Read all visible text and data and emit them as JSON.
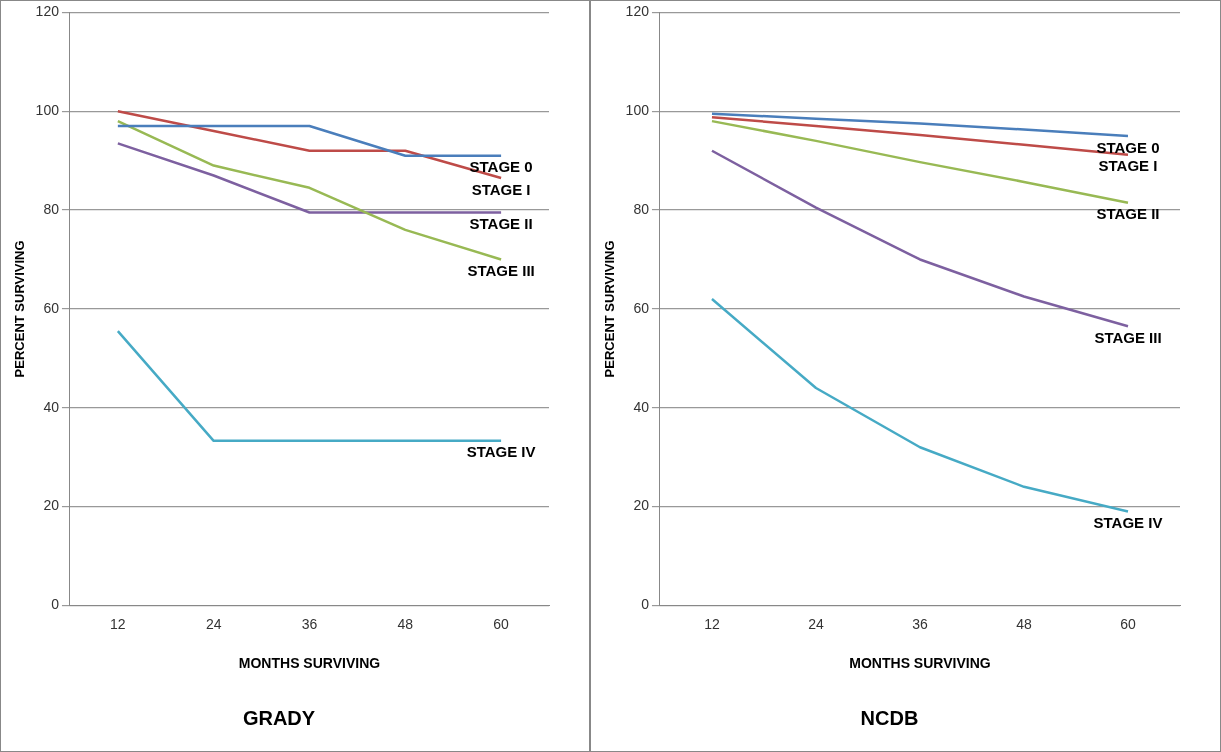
{
  "chart_data": [
    {
      "type": "line",
      "title": "GRADY",
      "xlabel": "MONTHS SURVIVING",
      "ylabel": "PERCENT SURVIVING",
      "x": [
        12,
        24,
        36,
        48,
        60
      ],
      "xlim": [
        6,
        66
      ],
      "xticks": [
        12,
        24,
        36,
        48,
        60
      ],
      "ylim": [
        0,
        120
      ],
      "yticks": [
        0,
        20,
        40,
        60,
        80,
        100,
        120
      ],
      "grid": "y",
      "series": [
        {
          "name": "STAGE 0",
          "color": "#4a7ebb",
          "values": [
            97,
            97,
            97,
            91,
            91
          ]
        },
        {
          "name": "STAGE I",
          "color": "#be4b48",
          "values": [
            100,
            96,
            92,
            92,
            86.5
          ]
        },
        {
          "name": "STAGE III",
          "color": "#98b954",
          "values": [
            98,
            89,
            84.5,
            76,
            70
          ]
        },
        {
          "name": "STAGE II",
          "color": "#7d60a0",
          "values": [
            93.5,
            87,
            79.5,
            79.5,
            79.5
          ]
        },
        {
          "name": "STAGE IV",
          "color": "#46aac5",
          "values": [
            55.5,
            33.3,
            33.3,
            33.3,
            33.3
          ]
        }
      ]
    },
    {
      "type": "line",
      "title": "NCDB",
      "xlabel": "MONTHS SURVIVING",
      "ylabel": "PERCENT SURVIVING",
      "x": [
        12,
        24,
        36,
        48,
        60
      ],
      "xlim": [
        6,
        66
      ],
      "xticks": [
        12,
        24,
        36,
        48,
        60
      ],
      "ylim": [
        0,
        120
      ],
      "yticks": [
        0,
        20,
        40,
        60,
        80,
        100,
        120
      ],
      "grid": "y",
      "series": [
        {
          "name": "STAGE 0",
          "color": "#4a7ebb",
          "values": [
            99.5,
            98.5,
            97.5,
            96.3,
            95
          ]
        },
        {
          "name": "STAGE I",
          "color": "#be4b48",
          "values": [
            98.8,
            97,
            95.2,
            93.2,
            91.2
          ]
        },
        {
          "name": "STAGE II",
          "color": "#98b954",
          "values": [
            98,
            94,
            89.7,
            85.7,
            81.5
          ]
        },
        {
          "name": "STAGE III",
          "color": "#7d60a0",
          "values": [
            92,
            80.5,
            70,
            62.5,
            56.5
          ]
        },
        {
          "name": "STAGE IV",
          "color": "#46aac5",
          "values": [
            62,
            44,
            32,
            24,
            19
          ]
        }
      ]
    }
  ]
}
